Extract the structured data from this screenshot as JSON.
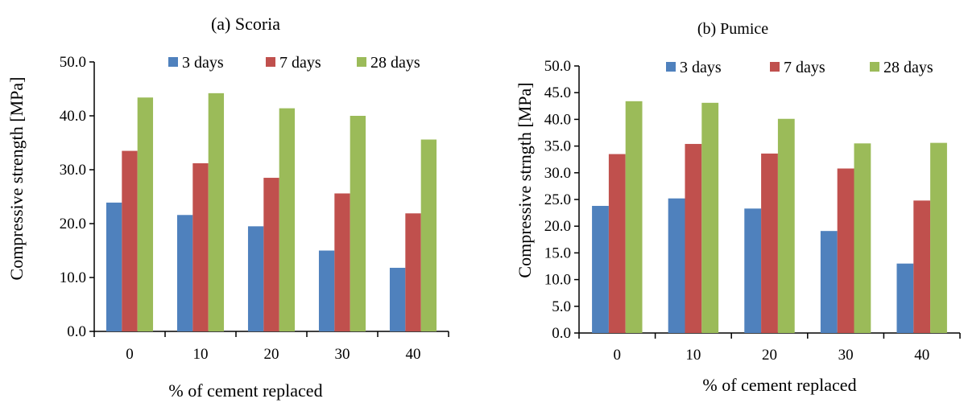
{
  "chart_data": [
    {
      "type": "bar",
      "title": "(a) Scoria",
      "xlabel": "% of cement replaced",
      "ylabel": "Compressive strength [MPa]",
      "categories": [
        "0",
        "10",
        "20",
        "30",
        "40"
      ],
      "ylim": [
        0,
        50
      ],
      "yticks": [
        "0.0",
        "10.0",
        "20.0",
        "30.0",
        "40.0",
        "50.0"
      ],
      "grid": false,
      "legend_position": "top",
      "series": [
        {
          "name": "3 days",
          "color": "#4F81BD",
          "values": [
            23.9,
            21.6,
            19.5,
            15.0,
            11.8
          ]
        },
        {
          "name": "7 days",
          "color": "#C0504D",
          "values": [
            33.5,
            31.2,
            28.5,
            25.6,
            21.9
          ]
        },
        {
          "name": "28 days",
          "color": "#9BBB59",
          "values": [
            43.4,
            44.2,
            41.4,
            40.0,
            35.6
          ]
        }
      ]
    },
    {
      "type": "bar",
      "title": "(b) Pumice",
      "xlabel": "% of cement replaced",
      "ylabel": "Compressive strngth [MPa]",
      "categories": [
        "0",
        "10",
        "20",
        "30",
        "40"
      ],
      "ylim": [
        0,
        50
      ],
      "yticks": [
        "0.0",
        "5.0",
        "10.0",
        "15.0",
        "20.0",
        "25.0",
        "30.0",
        "35.0",
        "40.0",
        "45.0",
        "50.0"
      ],
      "grid": false,
      "legend_position": "top",
      "series": [
        {
          "name": "3 days",
          "color": "#4F81BD",
          "values": [
            23.8,
            25.2,
            23.3,
            19.1,
            13.0
          ]
        },
        {
          "name": "7 days",
          "color": "#C0504D",
          "values": [
            33.5,
            35.4,
            33.6,
            30.8,
            24.8
          ]
        },
        {
          "name": "28 days",
          "color": "#9BBB59",
          "values": [
            43.4,
            43.1,
            40.1,
            35.5,
            35.6
          ]
        }
      ]
    }
  ]
}
